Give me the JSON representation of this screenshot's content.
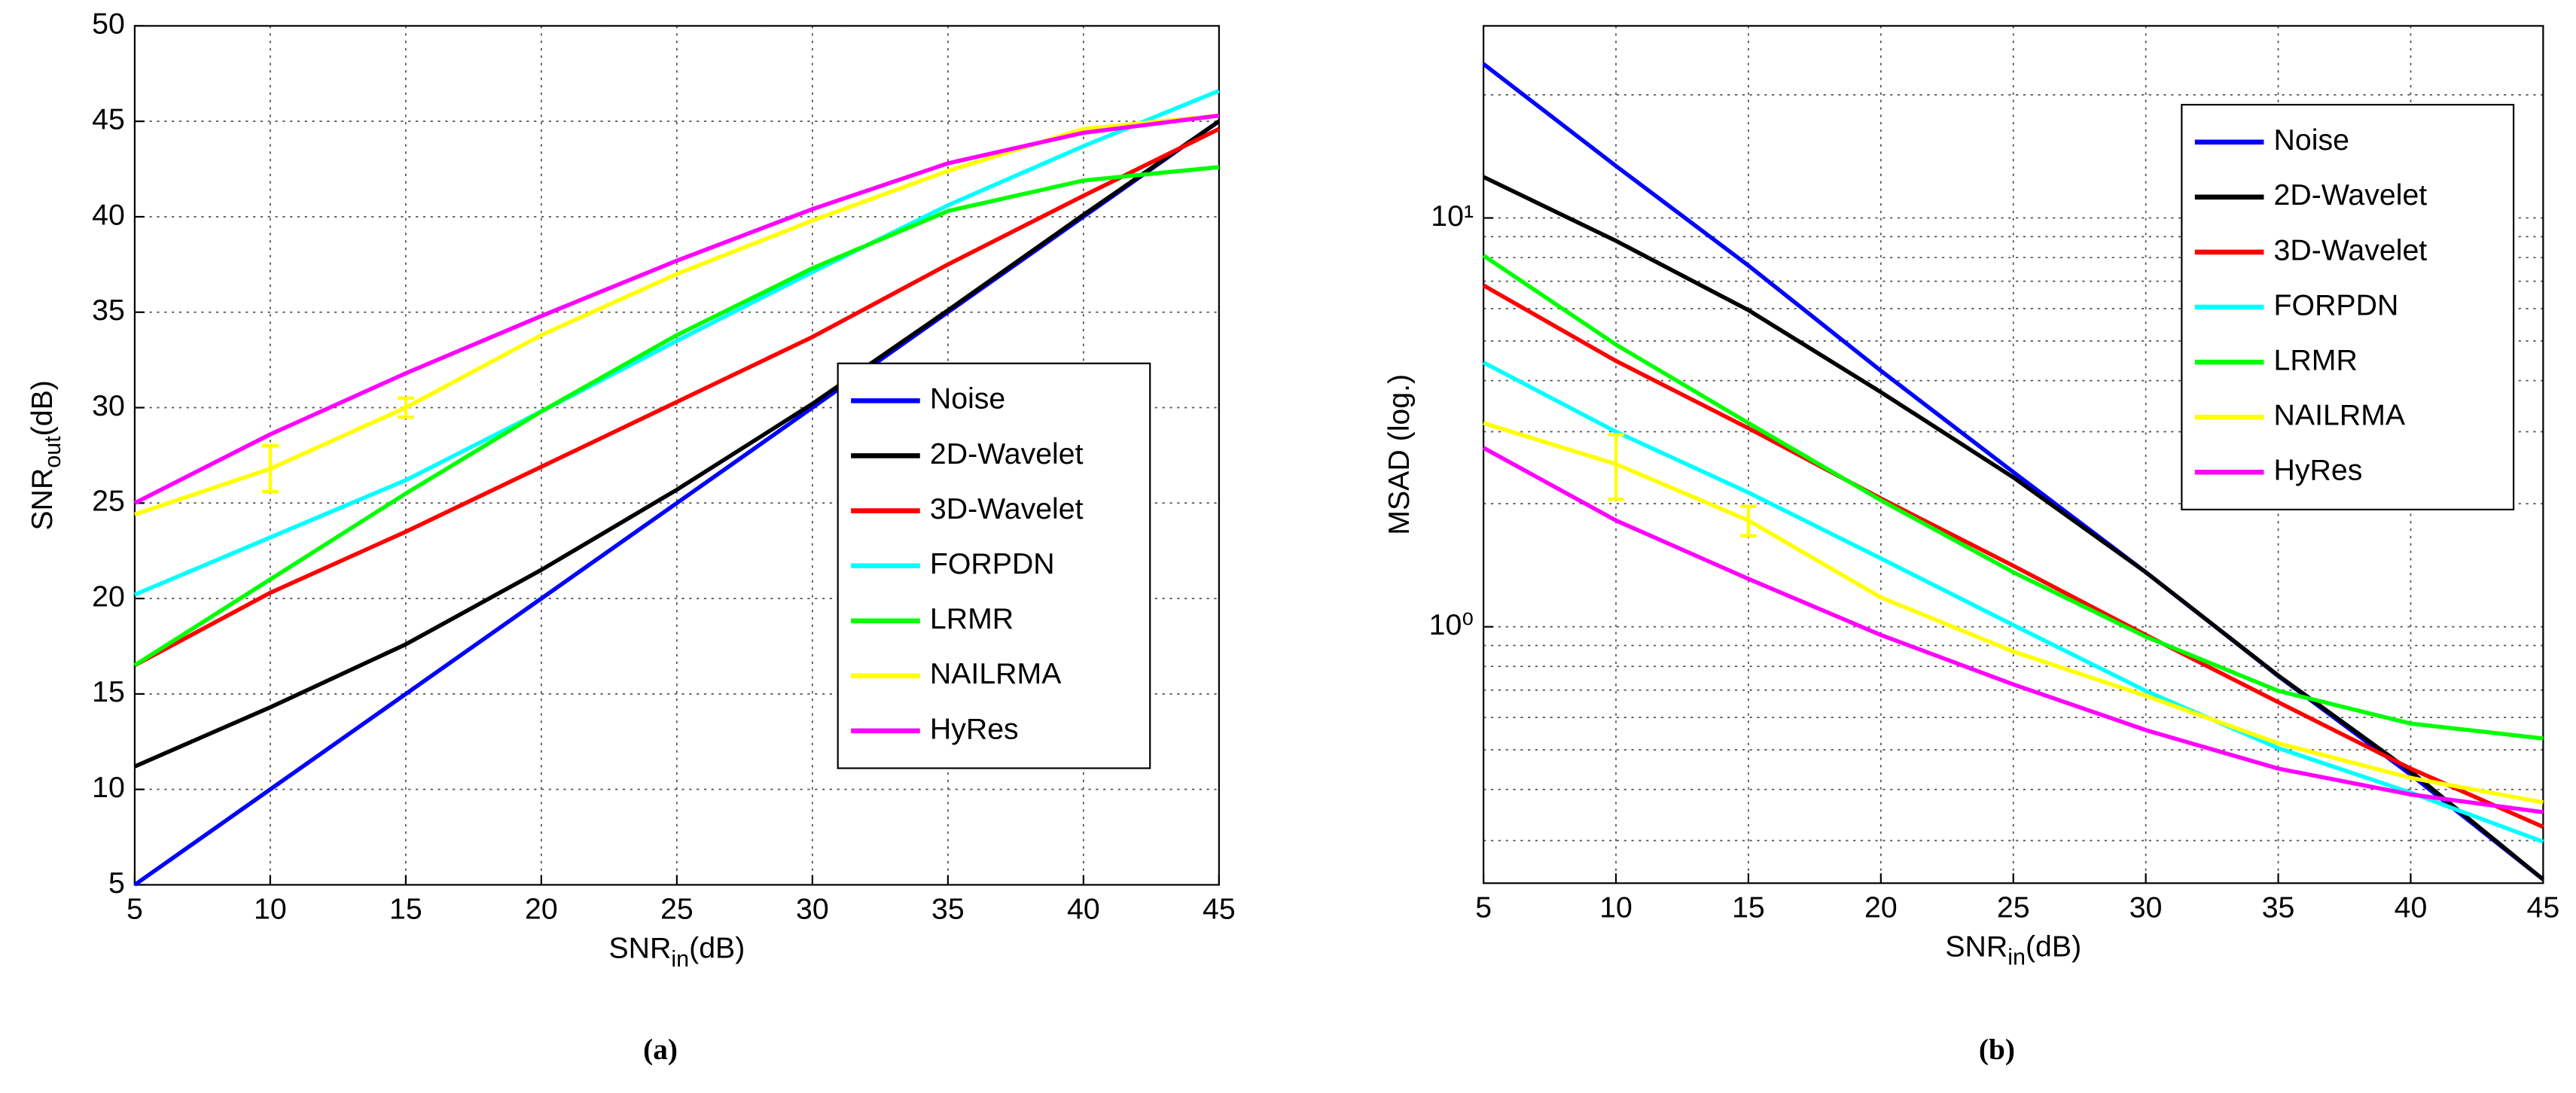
{
  "chart_data": [
    {
      "type": "line",
      "panel": "(a)",
      "xlabel": {
        "text": "SNR",
        "sub": "in",
        "suffix": "(dB)"
      },
      "ylabel": {
        "text": "SNR",
        "sub": "out",
        "suffix": "(dB)"
      },
      "x": [
        5,
        10,
        15,
        20,
        25,
        30,
        35,
        40,
        45
      ],
      "xlim": [
        5,
        45
      ],
      "xticks": [
        5,
        10,
        15,
        20,
        25,
        30,
        35,
        40,
        45
      ],
      "ylim": [
        5,
        50
      ],
      "yticks": [
        5,
        10,
        15,
        20,
        25,
        30,
        35,
        40,
        45,
        50
      ],
      "grid": true,
      "log": false,
      "legend": "lower right",
      "series": [
        {
          "name": "Noise",
          "color": "#0000ff",
          "values": [
            5,
            10,
            15,
            20,
            25,
            30,
            35,
            40,
            45
          ]
        },
        {
          "name": "2D-Wavelet",
          "color": "#000000",
          "values": [
            11.2,
            14.3,
            17.6,
            21.5,
            25.7,
            30.2,
            35.1,
            40.1,
            45.0
          ]
        },
        {
          "name": "3D-Wavelet",
          "color": "#ff0000",
          "values": [
            16.5,
            20.3,
            23.5,
            26.9,
            30.3,
            33.7,
            37.5,
            41.1,
            44.6
          ]
        },
        {
          "name": "FORPDN",
          "color": "#00ffff",
          "values": [
            20.2,
            23.2,
            26.2,
            29.8,
            33.5,
            37.1,
            40.6,
            43.7,
            46.6
          ]
        },
        {
          "name": "LRMR",
          "color": "#00ff00",
          "values": [
            16.5,
            21.0,
            25.5,
            29.8,
            33.8,
            37.3,
            40.3,
            41.9,
            42.6
          ]
        },
        {
          "name": "NAILRMA",
          "color": "#ffff00",
          "values": [
            24.4,
            26.8,
            30.0,
            33.8,
            37.0,
            39.8,
            42.4,
            44.6,
            45.3
          ],
          "errors": [
            null,
            1.2,
            0.5,
            null,
            null,
            null,
            null,
            null,
            null
          ]
        },
        {
          "name": "HyRes",
          "color": "#ff00ff",
          "values": [
            25.0,
            28.6,
            31.8,
            34.8,
            37.7,
            40.4,
            42.8,
            44.4,
            45.3
          ]
        }
      ]
    },
    {
      "type": "line",
      "panel": "(b)",
      "xlabel": {
        "text": "SNR",
        "sub": "in",
        "suffix": "(dB)"
      },
      "ylabel": {
        "text": "MSAD (log.)"
      },
      "x": [
        5,
        10,
        15,
        20,
        25,
        30,
        35,
        40,
        45
      ],
      "xlim": [
        5,
        45
      ],
      "xticks": [
        5,
        10,
        15,
        20,
        25,
        30,
        35,
        40,
        45
      ],
      "ylim": [
        0.236,
        29.5
      ],
      "yticks": [
        {
          "value": 1,
          "label": "10⁰"
        },
        {
          "value": 10,
          "label": "10¹"
        }
      ],
      "yminor": [
        0.3,
        0.4,
        0.5,
        0.6,
        0.7,
        0.8,
        0.9,
        2,
        3,
        4,
        5,
        6,
        7,
        8,
        9,
        20
      ],
      "grid": true,
      "log": true,
      "legend": "upper right",
      "series": [
        {
          "name": "Noise",
          "color": "#0000ff",
          "values": [
            23.8,
            13.4,
            7.65,
            4.23,
            2.39,
            1.36,
            0.758,
            0.435,
            0.241
          ]
        },
        {
          "name": "2D-Wavelet",
          "color": "#000000",
          "values": [
            12.6,
            8.79,
            5.95,
            3.75,
            2.32,
            1.36,
            0.76,
            0.443,
            0.241
          ]
        },
        {
          "name": "3D-Wavelet",
          "color": "#ff0000",
          "values": [
            6.84,
            4.47,
            3.06,
            2.06,
            1.41,
            0.955,
            0.654,
            0.45,
            0.324
          ]
        },
        {
          "name": "FORPDN",
          "color": "#00ffff",
          "values": [
            4.43,
            3.0,
            2.13,
            1.47,
            1.01,
            0.697,
            0.505,
            0.393,
            0.298
          ]
        },
        {
          "name": "LRMR",
          "color": "#00ff00",
          "values": [
            8.09,
            4.9,
            3.15,
            2.04,
            1.36,
            0.946,
            0.697,
            0.58,
            0.533
          ]
        },
        {
          "name": "NAILRMA",
          "color": "#ffff00",
          "values": [
            3.15,
            2.5,
            1.82,
            1.18,
            0.87,
            0.678,
            0.519,
            0.427,
            0.372
          ],
          "errors": [
            null,
            0.45,
            0.15,
            null,
            null,
            null,
            null,
            null,
            null
          ]
        },
        {
          "name": "HyRes",
          "color": "#ff00ff",
          "values": [
            2.74,
            1.82,
            1.31,
            0.955,
            0.723,
            0.559,
            0.45,
            0.389,
            0.352
          ]
        }
      ]
    }
  ]
}
